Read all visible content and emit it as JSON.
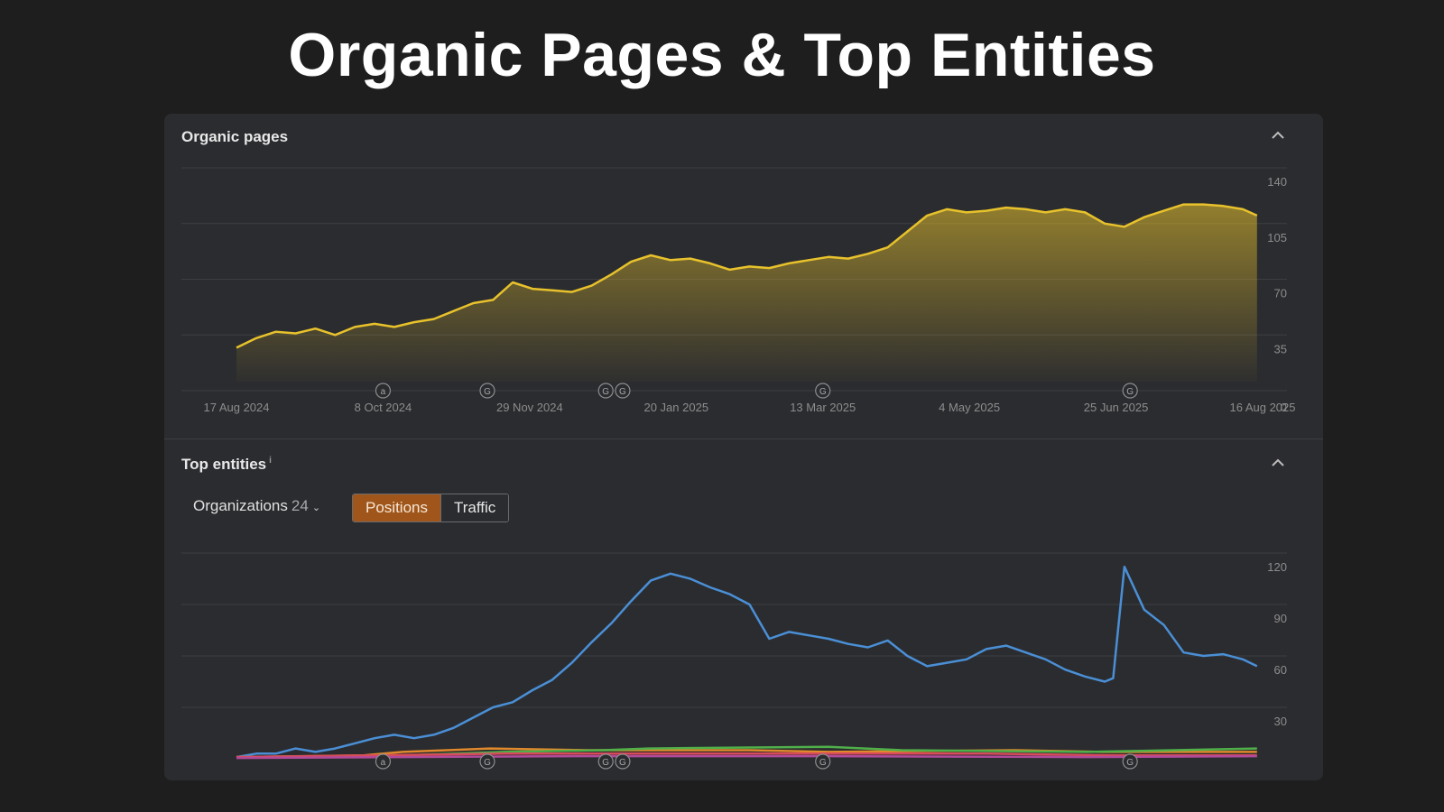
{
  "page_title": "Organic Pages & Top Entities",
  "organic_section": {
    "title": "Organic pages",
    "collapse_icon": "chevron-up-icon"
  },
  "entities_section": {
    "title": "Top entities",
    "info_mark": "i",
    "collapse_icon": "chevron-up-icon",
    "dropdown": {
      "label": "Organizations",
      "count": "24"
    },
    "toggle": {
      "options": [
        "Positions",
        "Traffic"
      ],
      "selected": "Positions"
    }
  },
  "colors": {
    "pages_line": "#e8c22c",
    "entity_1": "#4a8fd6",
    "entity_2": "#e0892c",
    "entity_3": "#4fb04a",
    "entity_4": "#d94a5a",
    "entity_5": "#b04a9a",
    "toggle_active": "#a0561a"
  },
  "chart_data": [
    {
      "type": "area",
      "title": "Organic pages",
      "x_tick_labels": [
        "17 Aug 2024",
        "8 Oct 2024",
        "29 Nov 2024",
        "20 Jan 2025",
        "13 Mar 2025",
        "4 May 2025",
        "25 Jun 2025",
        "16 Aug 2025"
      ],
      "y_ticks": [
        0,
        35,
        70,
        105,
        140
      ],
      "ylim": [
        0,
        140
      ],
      "y_axis_side": "right",
      "grid": true,
      "annotations": [
        {
          "date": "8 Oct 2024",
          "label": "a"
        },
        {
          "date": "14 Nov 2024",
          "label": "G"
        },
        {
          "date": "26 Dec 2024",
          "label": "G"
        },
        {
          "date": "1 Jan 2025",
          "label": "G"
        },
        {
          "date": "13 Mar 2025",
          "label": "G"
        },
        {
          "date": "30 Jun 2025",
          "label": "G"
        }
      ],
      "series": [
        {
          "color": "#e8c22c",
          "points": [
            [
              "2024-08-17",
              27
            ],
            [
              "2024-08-24",
              33
            ],
            [
              "2024-08-31",
              37
            ],
            [
              "2024-09-07",
              36
            ],
            [
              "2024-09-14",
              39
            ],
            [
              "2024-09-21",
              35
            ],
            [
              "2024-09-28",
              40
            ],
            [
              "2024-10-05",
              42
            ],
            [
              "2024-10-12",
              40
            ],
            [
              "2024-10-19",
              43
            ],
            [
              "2024-10-26",
              45
            ],
            [
              "2024-11-02",
              50
            ],
            [
              "2024-11-09",
              55
            ],
            [
              "2024-11-16",
              57
            ],
            [
              "2024-11-23",
              68
            ],
            [
              "2024-11-30",
              64
            ],
            [
              "2024-12-07",
              63
            ],
            [
              "2024-12-14",
              62
            ],
            [
              "2024-12-21",
              66
            ],
            [
              "2024-12-28",
              73
            ],
            [
              "2025-01-04",
              81
            ],
            [
              "2025-01-11",
              85
            ],
            [
              "2025-01-18",
              82
            ],
            [
              "2025-01-25",
              83
            ],
            [
              "2025-02-01",
              80
            ],
            [
              "2025-02-08",
              76
            ],
            [
              "2025-02-15",
              78
            ],
            [
              "2025-02-22",
              77
            ],
            [
              "2025-03-01",
              80
            ],
            [
              "2025-03-08",
              82
            ],
            [
              "2025-03-15",
              84
            ],
            [
              "2025-03-22",
              83
            ],
            [
              "2025-03-29",
              86
            ],
            [
              "2025-04-05",
              90
            ],
            [
              "2025-04-12",
              100
            ],
            [
              "2025-04-19",
              110
            ],
            [
              "2025-04-26",
              114
            ],
            [
              "2025-05-03",
              112
            ],
            [
              "2025-05-10",
              113
            ],
            [
              "2025-05-17",
              115
            ],
            [
              "2025-05-24",
              114
            ],
            [
              "2025-05-31",
              112
            ],
            [
              "2025-06-07",
              114
            ],
            [
              "2025-06-14",
              112
            ],
            [
              "2025-06-21",
              105
            ],
            [
              "2025-06-28",
              103
            ],
            [
              "2025-07-05",
              109
            ],
            [
              "2025-07-12",
              113
            ],
            [
              "2025-07-19",
              117
            ],
            [
              "2025-07-26",
              117
            ],
            [
              "2025-08-02",
              116
            ],
            [
              "2025-08-09",
              114
            ],
            [
              "2025-08-14",
              110
            ]
          ]
        }
      ]
    },
    {
      "type": "line",
      "title": "Top entities",
      "y_ticks": [
        30,
        60,
        90,
        120
      ],
      "ylim": [
        0,
        120
      ],
      "y_axis_side": "right",
      "grid": true,
      "annotations": [
        {
          "date": "8 Oct 2024",
          "label": "a"
        },
        {
          "date": "14 Nov 2024",
          "label": "G"
        },
        {
          "date": "26 Dec 2024",
          "label": "G"
        },
        {
          "date": "1 Jan 2025",
          "label": "G"
        },
        {
          "date": "13 Mar 2025",
          "label": "G"
        },
        {
          "date": "30 Jun 2025",
          "label": "G"
        }
      ],
      "series": [
        {
          "color": "#4a8fd6",
          "points": [
            [
              "2024-08-17",
              1
            ],
            [
              "2024-08-24",
              3
            ],
            [
              "2024-08-31",
              3
            ],
            [
              "2024-09-07",
              6
            ],
            [
              "2024-09-14",
              4
            ],
            [
              "2024-09-21",
              6
            ],
            [
              "2024-09-28",
              9
            ],
            [
              "2024-10-05",
              12
            ],
            [
              "2024-10-12",
              14
            ],
            [
              "2024-10-19",
              12
            ],
            [
              "2024-10-26",
              14
            ],
            [
              "2024-11-02",
              18
            ],
            [
              "2024-11-09",
              24
            ],
            [
              "2024-11-16",
              30
            ],
            [
              "2024-11-23",
              33
            ],
            [
              "2024-11-30",
              40
            ],
            [
              "2024-12-07",
              46
            ],
            [
              "2024-12-14",
              56
            ],
            [
              "2024-12-21",
              68
            ],
            [
              "2024-12-28",
              79
            ],
            [
              "2025-01-04",
              92
            ],
            [
              "2025-01-11",
              104
            ],
            [
              "2025-01-18",
              108
            ],
            [
              "2025-01-25",
              105
            ],
            [
              "2025-02-01",
              100
            ],
            [
              "2025-02-08",
              96
            ],
            [
              "2025-02-15",
              90
            ],
            [
              "2025-02-22",
              70
            ],
            [
              "2025-03-01",
              74
            ],
            [
              "2025-03-08",
              72
            ],
            [
              "2025-03-15",
              70
            ],
            [
              "2025-03-22",
              67
            ],
            [
              "2025-03-29",
              65
            ],
            [
              "2025-04-05",
              69
            ],
            [
              "2025-04-12",
              60
            ],
            [
              "2025-04-19",
              54
            ],
            [
              "2025-04-26",
              56
            ],
            [
              "2025-05-03",
              58
            ],
            [
              "2025-05-10",
              64
            ],
            [
              "2025-05-17",
              66
            ],
            [
              "2025-05-24",
              62
            ],
            [
              "2025-05-31",
              58
            ],
            [
              "2025-06-07",
              52
            ],
            [
              "2025-06-14",
              48
            ],
            [
              "2025-06-21",
              45
            ],
            [
              "2025-06-24",
              47
            ],
            [
              "2025-06-28",
              112
            ],
            [
              "2025-07-05",
              87
            ],
            [
              "2025-07-12",
              78
            ],
            [
              "2025-07-19",
              62
            ],
            [
              "2025-07-26",
              60
            ],
            [
              "2025-08-02",
              61
            ],
            [
              "2025-08-09",
              58
            ],
            [
              "2025-08-14",
              54
            ]
          ]
        },
        {
          "color": "#e0892c",
          "points": [
            [
              "2024-08-17",
              1
            ],
            [
              "2024-10-01",
              2
            ],
            [
              "2024-10-15",
              4
            ],
            [
              "2024-11-15",
              6
            ],
            [
              "2024-12-20",
              5
            ],
            [
              "2025-02-15",
              5
            ],
            [
              "2025-03-15",
              4
            ],
            [
              "2025-05-20",
              5
            ],
            [
              "2025-06-20",
              4
            ],
            [
              "2025-08-14",
              4
            ]
          ]
        },
        {
          "color": "#4fb04a",
          "points": [
            [
              "2024-08-17",
              1
            ],
            [
              "2024-10-15",
              2
            ],
            [
              "2024-11-20",
              4
            ],
            [
              "2024-12-25",
              5
            ],
            [
              "2025-01-10",
              6
            ],
            [
              "2025-03-15",
              7
            ],
            [
              "2025-04-10",
              5
            ],
            [
              "2025-06-15",
              4
            ],
            [
              "2025-08-14",
              6
            ]
          ]
        },
        {
          "color": "#d94a5a",
          "points": [
            [
              "2024-08-17",
              1
            ],
            [
              "2024-10-05",
              2
            ],
            [
              "2024-11-20",
              3
            ],
            [
              "2025-01-10",
              3
            ],
            [
              "2025-03-15",
              3
            ],
            [
              "2025-05-10",
              3
            ],
            [
              "2025-06-25",
              2
            ],
            [
              "2025-08-14",
              2
            ]
          ]
        },
        {
          "color": "#b04a9a",
          "points": [
            [
              "2024-08-17",
              0.5
            ],
            [
              "2024-10-15",
              1
            ],
            [
              "2024-12-20",
              1.5
            ],
            [
              "2025-03-15",
              1.5
            ],
            [
              "2025-06-15",
              1
            ],
            [
              "2025-08-14",
              1.5
            ]
          ]
        }
      ]
    }
  ]
}
